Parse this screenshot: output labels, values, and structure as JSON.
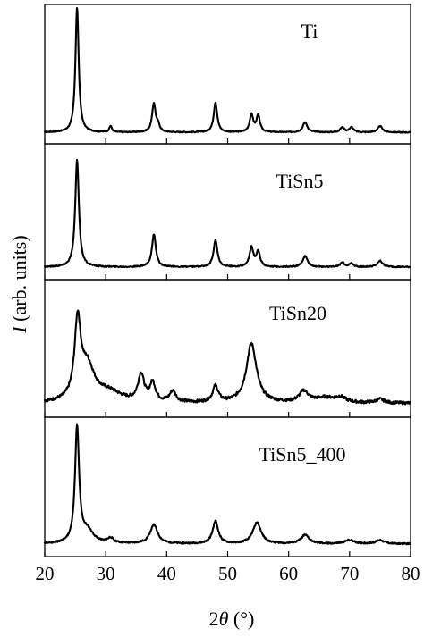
{
  "chart_data": {
    "type": "line",
    "xlabel_prefix": "2",
    "xlabel_symbol": "θ",
    "xlabel_unit": " (°)",
    "ylabel_symbol": "I",
    "ylabel_rest": " (arb. units)",
    "xlim": [
      20,
      80
    ],
    "x_ticks": [
      20,
      30,
      40,
      50,
      60,
      70,
      80
    ],
    "y_ticks_visible": false,
    "grid": false,
    "legend": "none",
    "line_color": "#000000",
    "series": [
      {
        "name": "Ti",
        "baseline": 0.02,
        "noise": 0.004,
        "peaks": [
          {
            "x": 25.3,
            "h": 1.0,
            "w": 0.32
          },
          {
            "x": 30.8,
            "h": 0.05,
            "w": 0.25
          },
          {
            "x": 37.9,
            "h": 0.23,
            "w": 0.35
          },
          {
            "x": 38.6,
            "h": 0.05,
            "w": 0.3
          },
          {
            "x": 48.0,
            "h": 0.24,
            "w": 0.35
          },
          {
            "x": 53.9,
            "h": 0.14,
            "w": 0.35
          },
          {
            "x": 55.0,
            "h": 0.13,
            "w": 0.35
          },
          {
            "x": 62.7,
            "h": 0.08,
            "w": 0.45
          },
          {
            "x": 68.8,
            "h": 0.04,
            "w": 0.4
          },
          {
            "x": 70.3,
            "h": 0.04,
            "w": 0.4
          },
          {
            "x": 75.0,
            "h": 0.05,
            "w": 0.45
          }
        ]
      },
      {
        "name": "TiSn5",
        "baseline": 0.03,
        "noise": 0.005,
        "peaks": [
          {
            "x": 25.3,
            "h": 0.88,
            "w": 0.36
          },
          {
            "x": 37.9,
            "h": 0.27,
            "w": 0.38
          },
          {
            "x": 48.0,
            "h": 0.22,
            "w": 0.38
          },
          {
            "x": 53.9,
            "h": 0.16,
            "w": 0.38
          },
          {
            "x": 55.0,
            "h": 0.12,
            "w": 0.38
          },
          {
            "x": 62.7,
            "h": 0.09,
            "w": 0.48
          },
          {
            "x": 68.8,
            "h": 0.04,
            "w": 0.4
          },
          {
            "x": 70.3,
            "h": 0.03,
            "w": 0.4
          },
          {
            "x": 75.0,
            "h": 0.05,
            "w": 0.5
          }
        ]
      },
      {
        "name": "TiSn20",
        "baseline": 0.04,
        "noise": 0.012,
        "peaks": [
          {
            "x": 25.4,
            "h": 0.62,
            "w": 0.6
          },
          {
            "x": 27.0,
            "h": 0.28,
            "w": 1.4
          },
          {
            "x": 30.5,
            "h": 0.08,
            "w": 2.5
          },
          {
            "x": 35.8,
            "h": 0.22,
            "w": 0.6
          },
          {
            "x": 37.7,
            "h": 0.15,
            "w": 0.55
          },
          {
            "x": 41.0,
            "h": 0.09,
            "w": 0.6
          },
          {
            "x": 48.0,
            "h": 0.13,
            "w": 0.55
          },
          {
            "x": 53.9,
            "h": 0.48,
            "w": 1.0
          },
          {
            "x": 62.5,
            "h": 0.09,
            "w": 0.9
          },
          {
            "x": 66.0,
            "h": 0.04,
            "w": 2.0
          },
          {
            "x": 68.5,
            "h": 0.04,
            "w": 1.0
          },
          {
            "x": 75.0,
            "h": 0.03,
            "w": 0.8
          }
        ]
      },
      {
        "name": "TiSn5_400",
        "baseline": 0.03,
        "noise": 0.006,
        "peaks": [
          {
            "x": 25.3,
            "h": 0.92,
            "w": 0.4
          },
          {
            "x": 27.0,
            "h": 0.1,
            "w": 1.2
          },
          {
            "x": 30.8,
            "h": 0.04,
            "w": 0.6
          },
          {
            "x": 37.9,
            "h": 0.15,
            "w": 0.75
          },
          {
            "x": 48.0,
            "h": 0.18,
            "w": 0.55
          },
          {
            "x": 54.8,
            "h": 0.17,
            "w": 0.8
          },
          {
            "x": 62.7,
            "h": 0.07,
            "w": 0.8
          },
          {
            "x": 70.0,
            "h": 0.03,
            "w": 0.9
          },
          {
            "x": 75.0,
            "h": 0.03,
            "w": 0.8
          }
        ]
      }
    ]
  }
}
